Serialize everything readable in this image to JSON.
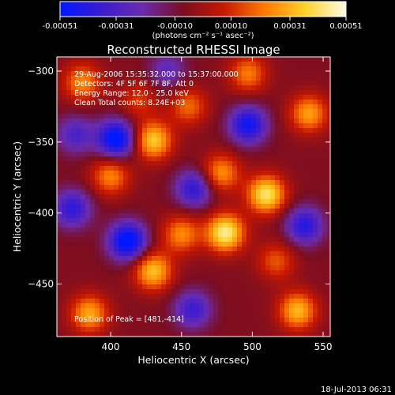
{
  "colorbar": {
    "tick_labels": [
      "-0.00051",
      "-0.00031",
      "-0.00010",
      "0.00010",
      "0.00031",
      "0.00051"
    ],
    "units_label": "(photons cm⁻² s⁻¹ asec⁻²)"
  },
  "chart_data": {
    "type": "heatmap",
    "title": "Reconstructed RHESSI Image",
    "xlabel": "Heliocentric X (arcsec)",
    "ylabel": "Heliocentric Y (arcsec)",
    "xlim": [
      362,
      555
    ],
    "ylim": [
      -487,
      -290
    ],
    "x_ticks": [
      400,
      450,
      500,
      550
    ],
    "y_ticks": [
      -300,
      -350,
      -400,
      -450
    ],
    "x_tick_labels": [
      "400",
      "450",
      "500",
      "550"
    ],
    "y_tick_labels": [
      "−300",
      "−350",
      "−400",
      "−450"
    ],
    "color_range": [
      -0.00051,
      0.00051
    ],
    "colormap": [
      "#0018ff",
      "#3a1bd0",
      "#6a2cae",
      "#7a0d22",
      "#c81800",
      "#ff7a00",
      "#ffd22a",
      "#fffbe8"
    ],
    "annotations": [
      "29-Aug-2006 15:35:32.000 to 15:37:00.000",
      "Detectors: 4F 5F 6F 7F 8F, Att 0",
      "Energy Range: 12.0 - 25.0 keV",
      "Clean     Total counts: 8.24E+03"
    ],
    "peak_label": "Position of Peak = [481,-414]",
    "peak": [
      481,
      -414
    ],
    "sources": [
      {
        "x": 481,
        "y": -414,
        "value": 0.00051
      },
      {
        "x": 510,
        "y": -387,
        "value": 0.00048
      },
      {
        "x": 430,
        "y": -349,
        "value": 0.00042
      },
      {
        "x": 430,
        "y": -441,
        "value": 0.0004
      },
      {
        "x": 532,
        "y": -469,
        "value": 0.00038
      },
      {
        "x": 385,
        "y": -471,
        "value": 0.00035
      },
      {
        "x": 540,
        "y": -330,
        "value": 0.00034
      },
      {
        "x": 478,
        "y": -372,
        "value": 0.00032
      },
      {
        "x": 450,
        "y": -415,
        "value": 0.0003
      },
      {
        "x": 400,
        "y": -374,
        "value": 0.0003
      },
      {
        "x": 380,
        "y": -308,
        "value": 0.0003
      },
      {
        "x": 497,
        "y": -302,
        "value": 0.00028
      },
      {
        "x": 455,
        "y": -325,
        "value": 0.00025
      },
      {
        "x": 517,
        "y": -434,
        "value": 0.00022
      },
      {
        "x": 420,
        "y": -320,
        "value": 0.00018
      },
      {
        "x": 404,
        "y": -348,
        "value": -0.0005
      },
      {
        "x": 412,
        "y": -420,
        "value": -0.00051
      },
      {
        "x": 497,
        "y": -338,
        "value": -0.00042
      },
      {
        "x": 373,
        "y": -397,
        "value": -0.00034
      },
      {
        "x": 459,
        "y": -383,
        "value": -0.00034
      },
      {
        "x": 537,
        "y": -409,
        "value": -0.00036
      },
      {
        "x": 458,
        "y": -468,
        "value": -0.0003
      },
      {
        "x": 375,
        "y": -345,
        "value": -0.00025
      },
      {
        "x": 440,
        "y": -300,
        "value": -0.0002
      }
    ]
  },
  "timestamp": "18-Jul-2013 06:31"
}
